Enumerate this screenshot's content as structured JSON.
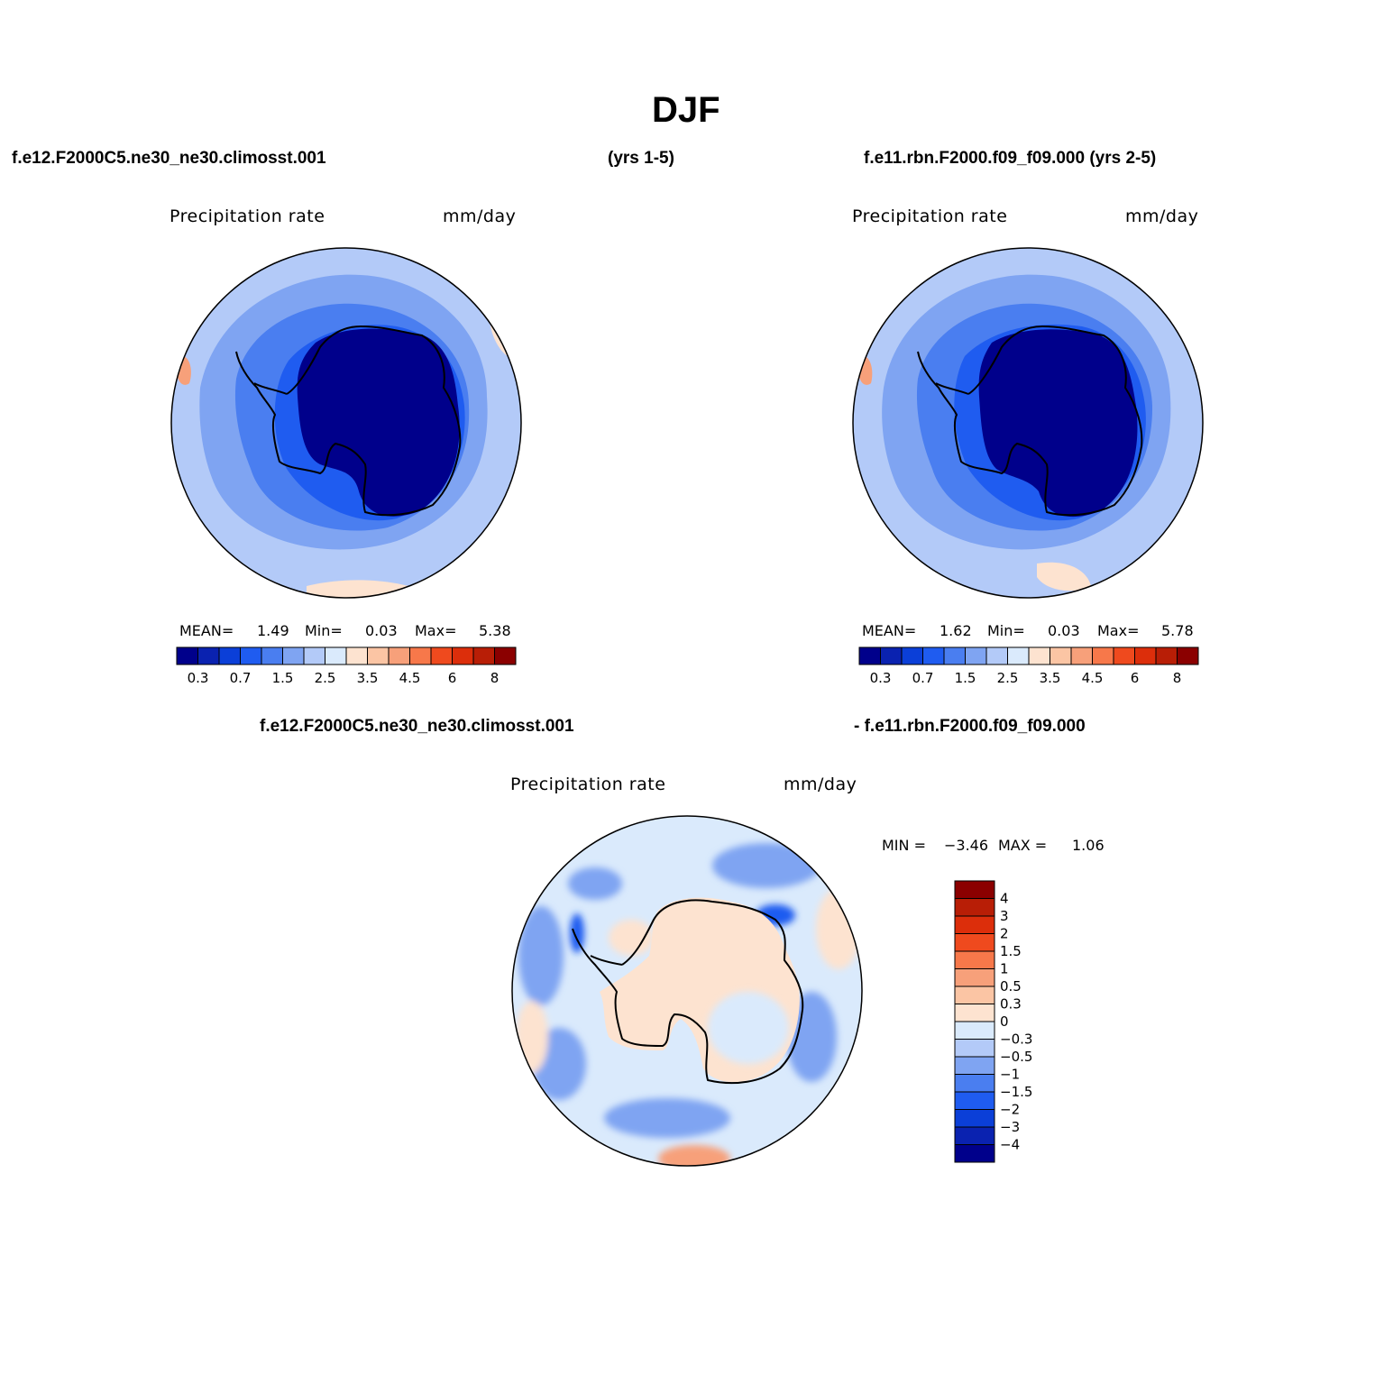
{
  "title": "DJF",
  "top_left": {
    "case_label": "f.e12.F2000C5.ne30_ne30.climosst.001",
    "years_label": "(yrs 1-5)",
    "var_name": "Precipitation rate",
    "units": "mm/day",
    "stats": {
      "mean_label": "MEAN=",
      "mean": "1.49",
      "min_label": "Min=",
      "min": "0.03",
      "max_label": "Max=",
      "max": "5.38"
    }
  },
  "top_right": {
    "case_label": "f.e11.rbn.F2000.f09_f09.000 (yrs 2-5)",
    "var_name": "Precipitation rate",
    "units": "mm/day",
    "stats": {
      "mean_label": "MEAN=",
      "mean": "1.62",
      "min_label": "Min=",
      "min": "0.03",
      "max_label": "Max=",
      "max": "5.78"
    }
  },
  "bottom": {
    "case_label_left": "f.e12.F2000C5.ne30_ne30.climosst.001",
    "case_label_right": "- f.e11.rbn.F2000.f09_f09.000",
    "var_name": "Precipitation rate",
    "units": "mm/day",
    "stats": {
      "min_label": "MIN =",
      "min": "−3.46",
      "max_label": "MAX =",
      "max": "1.06"
    }
  },
  "colorbar_main": {
    "colors": [
      "#00008b",
      "#0a22b0",
      "#0b3fd8",
      "#1f5cf0",
      "#4a7ef0",
      "#7fa4f2",
      "#b3caf8",
      "#daeafc",
      "#fde3d0",
      "#fbc5a4",
      "#f7a07a",
      "#f7784a",
      "#ef4a1e",
      "#dc2e0b",
      "#b81e06",
      "#8b0000"
    ],
    "tick_labels": [
      "0.3",
      "0.7",
      "1.5",
      "2.5",
      "3.5",
      "4.5",
      "6",
      "8"
    ]
  },
  "colorbar_diff": {
    "colors": [
      "#00008b",
      "#0a22b0",
      "#0b3fd8",
      "#1f5cf0",
      "#4a7ef0",
      "#7fa4f2",
      "#b3caf8",
      "#daeafc",
      "#fde3d0",
      "#fbc5a4",
      "#f7a07a",
      "#f7784a",
      "#ef4a1e",
      "#dc2e0b",
      "#b81e06",
      "#8b0000"
    ],
    "tick_labels": [
      "4",
      "3",
      "2",
      "1.5",
      "1",
      "0.5",
      "0.3",
      "0",
      "−0.3",
      "−0.5",
      "−1",
      "−1.5",
      "−2",
      "−3",
      "−4"
    ]
  },
  "map_colors": {
    "ocean_outer_main": "#b3caf8",
    "ocean_outer_diff": "#daeafc",
    "ocean_mid": "#7fa4f2",
    "ocean_inner": "#4a7ef0",
    "coast_ring": "#1f5cf0",
    "land": "#00008b",
    "land_diff": "#fde3d0",
    "warm_patch": "#fde3d0",
    "hot_patch": "#f7a07a",
    "coastline": "#000000"
  }
}
